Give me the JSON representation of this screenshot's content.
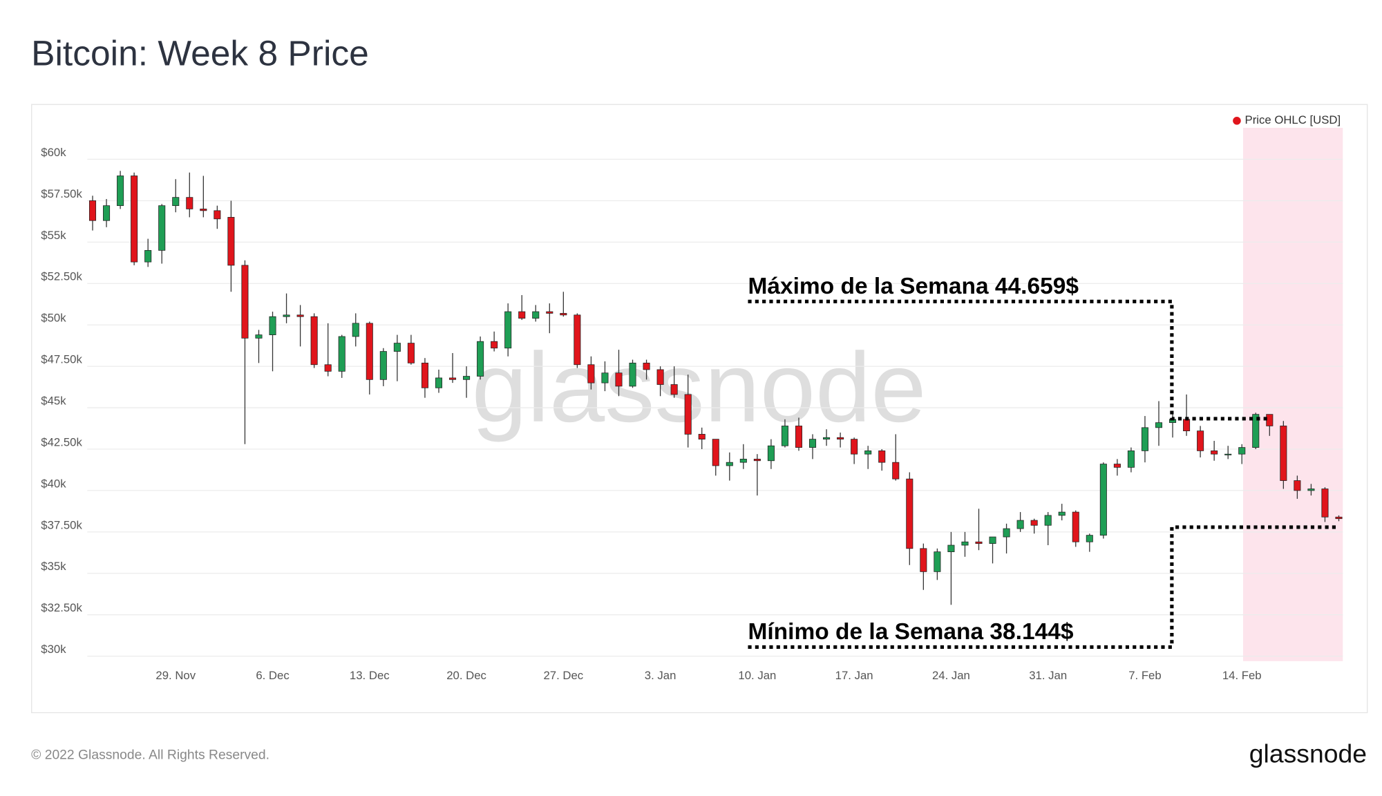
{
  "chart_data": {
    "type": "candlestick",
    "title": "Bitcoin: Week 8 Price",
    "footer": "© 2022 Glassnode. All Rights Reserved.",
    "brand": "glassnode",
    "watermark": "glassnode",
    "annotations": [
      "Máximo de la Semana 44.659$",
      "Mínimo de la Semana 38.144$"
    ],
    "legend": "top-right",
    "grid": true,
    "ylim": [
      29700,
      61900
    ],
    "yticks": [
      {
        "value": 30000,
        "label": "$30k"
      },
      {
        "value": 32500,
        "label": "$32.50k"
      },
      {
        "value": 35000,
        "label": "$35k"
      },
      {
        "value": 37500,
        "label": "$37.50k"
      },
      {
        "value": 40000,
        "label": "$40k"
      },
      {
        "value": 42500,
        "label": "$42.50k"
      },
      {
        "value": 45000,
        "label": "$45k"
      },
      {
        "value": 47500,
        "label": "$47.50k"
      },
      {
        "value": 50000,
        "label": "$50k"
      },
      {
        "value": 52500,
        "label": "$52.50k"
      },
      {
        "value": 55000,
        "label": "$55k"
      },
      {
        "value": 57500,
        "label": "$57.50k"
      },
      {
        "value": 60000,
        "label": "$60k"
      }
    ],
    "categories": [
      null,
      null,
      null,
      null,
      null,
      null,
      "29. Nov",
      null,
      null,
      null,
      null,
      null,
      null,
      "6. Dec",
      null,
      null,
      null,
      null,
      null,
      null,
      "13. Dec",
      null,
      null,
      null,
      null,
      null,
      null,
      "20. Dec",
      null,
      null,
      null,
      null,
      null,
      null,
      "27. Dec",
      null,
      null,
      null,
      null,
      null,
      null,
      "3. Jan",
      null,
      null,
      null,
      null,
      null,
      null,
      "10. Jan",
      null,
      null,
      null,
      null,
      null,
      null,
      "17. Jan",
      null,
      null,
      null,
      null,
      null,
      null,
      "24. Jan",
      null,
      null,
      null,
      null,
      null,
      null,
      "31. Jan",
      null,
      null,
      null,
      null,
      null,
      null,
      "7. Feb",
      null,
      null,
      null,
      null,
      null,
      null,
      "14. Feb",
      null,
      null,
      null,
      null,
      null,
      null,
      null
    ],
    "series": [
      {
        "name": "Price OHLC [USD]",
        "color": "#e0151c",
        "up_color": "#1f9e55",
        "down_color": "#e0151c",
        "open": [
          57500,
          56300,
          57200,
          59000,
          53800,
          54500,
          57200,
          57700,
          57000,
          56900,
          56500,
          53600,
          49200,
          49400,
          50500,
          50600,
          50500,
          47600,
          47200,
          49300,
          50100,
          46700,
          48400,
          48900,
          47700,
          46200,
          46800,
          46700,
          46900,
          49000,
          48600,
          50800,
          50400,
          50800,
          50700,
          50600,
          47600,
          46500,
          47100,
          46300,
          47700,
          47300,
          46400,
          45800,
          43400,
          43100,
          41500,
          41700,
          41900,
          41800,
          42700,
          43900,
          42600,
          43100,
          43200,
          43100,
          42200,
          42400,
          41700,
          40700,
          36500,
          35100,
          36300,
          36700,
          36900,
          36800,
          37200,
          37700,
          38200,
          37900,
          38500,
          38700,
          36900,
          37300,
          41600,
          41400,
          42400,
          43800,
          44100,
          44300,
          43600,
          42400,
          42200,
          42200,
          42600,
          44600,
          43900,
          40600,
          40000,
          40100,
          38400
        ],
        "high": [
          57800,
          57600,
          59300,
          59200,
          55200,
          57300,
          58800,
          59200,
          59000,
          57200,
          57500,
          53900,
          49700,
          50800,
          51900,
          51200,
          50700,
          50100,
          49400,
          50700,
          50200,
          48600,
          49400,
          49400,
          48000,
          47300,
          48300,
          47500,
          49300,
          49600,
          51300,
          51800,
          51200,
          51300,
          52000,
          50700,
          48100,
          47800,
          48500,
          47900,
          47900,
          47500,
          47500,
          47000,
          43800,
          43100,
          42300,
          42800,
          42200,
          43100,
          44300,
          44400,
          43400,
          43700,
          43500,
          43200,
          42700,
          42500,
          43400,
          41100,
          36800,
          36500,
          37500,
          37500,
          38900,
          37200,
          38000,
          38700,
          38300,
          38700,
          39200,
          38800,
          37400,
          41700,
          41900,
          42600,
          44500,
          45400,
          44800,
          45800,
          43900,
          43000,
          42700,
          42800,
          44700,
          44600,
          44200,
          40900,
          40400,
          40200,
          38500
        ],
        "low": [
          55700,
          55900,
          57000,
          53600,
          53500,
          53700,
          56800,
          56500,
          56500,
          55800,
          52000,
          42800,
          47700,
          47200,
          50100,
          48700,
          47400,
          46900,
          46800,
          48700,
          45800,
          46300,
          46600,
          47600,
          45600,
          45900,
          46500,
          45600,
          46700,
          48400,
          48100,
          50300,
          50200,
          49500,
          50500,
          47400,
          46100,
          46000,
          45700,
          46200,
          46700,
          45700,
          45600,
          42600,
          42500,
          40900,
          40600,
          41300,
          39700,
          41300,
          42600,
          42400,
          41900,
          42700,
          42600,
          41600,
          41300,
          41200,
          40600,
          35500,
          34000,
          34600,
          33100,
          36000,
          36400,
          35600,
          36200,
          37500,
          37400,
          36700,
          38200,
          36600,
          36300,
          37100,
          40900,
          41100,
          41700,
          42700,
          43200,
          43300,
          42000,
          41800,
          41900,
          41600,
          42500,
          43300,
          40100,
          39500,
          39700,
          38100,
          38150
        ],
        "close": [
          56300,
          57200,
          59000,
          53800,
          54500,
          57200,
          57700,
          57000,
          56900,
          56400,
          53600,
          49200,
          49400,
          50500,
          50600,
          50500,
          47600,
          47200,
          49300,
          50100,
          46700,
          48400,
          48900,
          47700,
          46200,
          46800,
          46700,
          46900,
          49000,
          48600,
          50800,
          50400,
          50800,
          50700,
          50600,
          47600,
          46500,
          47100,
          46300,
          47700,
          47300,
          46400,
          45800,
          43400,
          43100,
          41500,
          41700,
          41900,
          41800,
          42700,
          43900,
          42600,
          43100,
          43200,
          43100,
          42200,
          42400,
          41700,
          40700,
          36500,
          35100,
          36300,
          36700,
          36900,
          36800,
          37200,
          37700,
          38200,
          37900,
          38500,
          38700,
          36900,
          37300,
          41600,
          41400,
          42400,
          43800,
          44100,
          44300,
          43600,
          42400,
          42200,
          42200,
          42600,
          44600,
          43900,
          40600,
          40000,
          40100,
          38400,
          38300
        ]
      }
    ]
  }
}
